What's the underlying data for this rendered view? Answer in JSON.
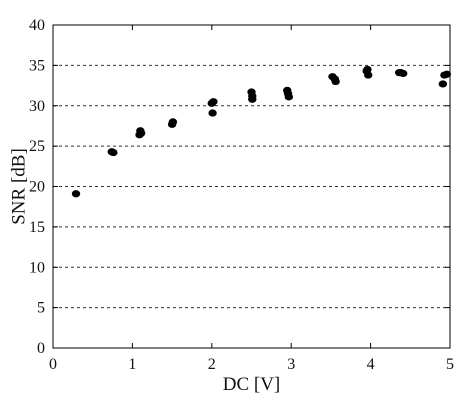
{
  "chart_data": {
    "type": "scatter",
    "xlabel": "DC [V]",
    "ylabel": "SNR [dB]",
    "xlim": [
      0,
      5
    ],
    "ylim": [
      0,
      40
    ],
    "xticks": [
      "0",
      "1",
      "2",
      "3",
      "4",
      "5"
    ],
    "yticks": [
      "0",
      "5",
      "10",
      "15",
      "20",
      "25",
      "30",
      "35",
      "40"
    ],
    "grid": "horizontal dashed",
    "marker_color": "#000000",
    "series": [
      {
        "points": [
          [
            0.29,
            19.1
          ],
          [
            0.74,
            24.3
          ],
          [
            0.76,
            24.2
          ],
          [
            1.09,
            26.4
          ],
          [
            1.1,
            26.9
          ],
          [
            1.11,
            26.6
          ],
          [
            1.5,
            27.7
          ],
          [
            1.51,
            28.0
          ],
          [
            2.0,
            30.3
          ],
          [
            2.02,
            30.5
          ],
          [
            2.01,
            29.1
          ],
          [
            2.5,
            31.7
          ],
          [
            2.51,
            31.2
          ],
          [
            2.51,
            30.8
          ],
          [
            2.95,
            31.9
          ],
          [
            2.96,
            31.5
          ],
          [
            2.97,
            31.1
          ],
          [
            3.52,
            33.6
          ],
          [
            3.55,
            33.3
          ],
          [
            3.56,
            33.0
          ],
          [
            3.95,
            34.3
          ],
          [
            3.96,
            34.5
          ],
          [
            3.97,
            33.8
          ],
          [
            4.36,
            34.1
          ],
          [
            4.38,
            34.1
          ],
          [
            4.41,
            34.0
          ],
          [
            4.91,
            32.7
          ],
          [
            4.93,
            33.8
          ],
          [
            4.96,
            33.9
          ]
        ]
      }
    ]
  }
}
